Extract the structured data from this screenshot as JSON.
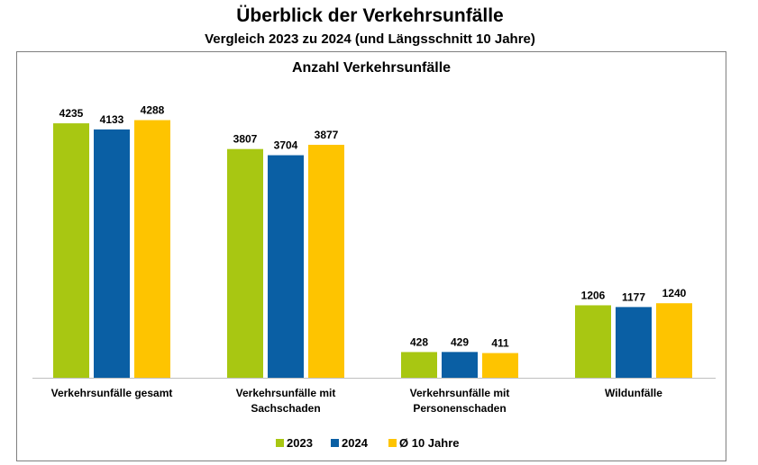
{
  "header": {
    "title": "Überblick der Verkehrsunfälle",
    "subtitle": "Vergleich 2023 zu 2024 (und Längsschnitt 10 Jahre)"
  },
  "chart_data": {
    "type": "bar",
    "title": "Anzahl Verkehrsunfälle",
    "categories": [
      [
        "Verkehrsunfälle gesamt"
      ],
      [
        "Verkehrsunfälle mit",
        "Sachschaden"
      ],
      [
        "Verkehrsunfälle mit",
        "Personenschaden"
      ],
      [
        "Wildunfälle"
      ]
    ],
    "series": [
      {
        "name": "2023",
        "color": "#a8c712",
        "values": [
          4235,
          3807,
          428,
          1206
        ]
      },
      {
        "name": "2024",
        "color": "#0a5fa4",
        "values": [
          4133,
          3704,
          429,
          1177
        ]
      },
      {
        "name": "Ø 10 Jahre",
        "color": "#fec400",
        "values": [
          4288,
          3877,
          411,
          1240
        ]
      }
    ],
    "ylim": [
      0,
      5000
    ],
    "grid": false,
    "legend_position": "bottom"
  }
}
